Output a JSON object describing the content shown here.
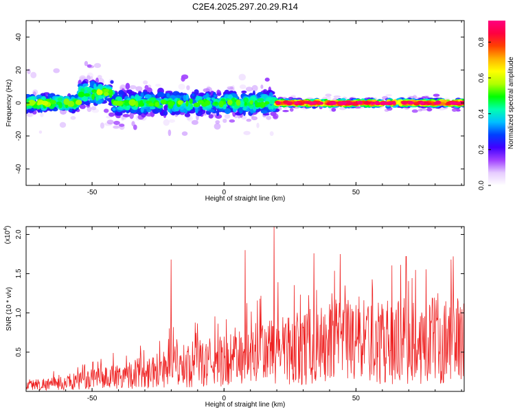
{
  "chart_data": [
    {
      "type": "heatmap",
      "title": "C2E4.2025.297.20.29.R14",
      "xlabel": "Height of straight line (km)",
      "ylabel": "Frequency (Hz)",
      "xlim": [
        -75,
        91
      ],
      "ylim": [
        -50,
        50
      ],
      "xticks": [
        -50,
        0,
        50
      ],
      "yticks": [
        -40,
        -20,
        0,
        20,
        40
      ],
      "colorbar": {
        "label": "Normalized spectral amplitude",
        "range": [
          0.0,
          0.92
        ],
        "ticks": [
          "0.0",
          "0.2",
          "0.4",
          "0.6",
          "0.8"
        ],
        "colors": [
          "#ffffff",
          "#e6ccff",
          "#a040ff",
          "#4000ff",
          "#0040ff",
          "#00c0ff",
          "#00ffb0",
          "#00ff00",
          "#b0ff00",
          "#ffff00",
          "#ffb000",
          "#ff4000",
          "#ff0040",
          "#ff0080"
        ]
      },
      "band": {
        "description_segments": [
          {
            "x_from": -75,
            "x_to": -55,
            "center_hz": 0,
            "spread_hz": 5,
            "peak_amp": 0.55
          },
          {
            "x_from": -55,
            "x_to": -42,
            "center_hz": 6,
            "spread_hz": 7,
            "peak_amp": 0.55
          },
          {
            "x_from": -42,
            "x_to": 20,
            "center_hz": 0,
            "spread_hz": 7,
            "peak_amp": 0.5
          },
          {
            "x_from": 20,
            "x_to": 91,
            "center_hz": 0,
            "spread_hz": 2,
            "peak_amp": 0.9
          }
        ]
      }
    },
    {
      "type": "line",
      "xlabel": "Height of straight line (km)",
      "ylabel": "SNR (10 * v/v)",
      "multiplier_label": "(x10",
      "multiplier_exp": "4",
      "xlim": [
        -75,
        91
      ],
      "ylim": [
        0,
        21000
      ],
      "xticks": [
        -50,
        0,
        50
      ],
      "yticks": [
        5000,
        10000,
        15000,
        20000
      ],
      "ytick_labels": [
        "0.5",
        "1.0",
        "1.5",
        "2.0"
      ],
      "series": [
        {
          "name": "SNR",
          "color": "#ee2020",
          "envelope_x": [
            -75,
            -60,
            -45,
            -30,
            -20,
            -10,
            0,
            10,
            20,
            30,
            40,
            50,
            60,
            70,
            80,
            91
          ],
          "envelope_mean": [
            1200,
            1500,
            2500,
            3500,
            4500,
            5000,
            5500,
            6500,
            7500,
            8000,
            8500,
            9000,
            9000,
            9200,
            9300,
            9500
          ],
          "peaks": [
            {
              "x": -20,
              "y": 16800
            },
            {
              "x": 8,
              "y": 18000
            },
            {
              "x": 19,
              "y": 21000
            },
            {
              "x": 34,
              "y": 17600
            },
            {
              "x": 44,
              "y": 17500
            },
            {
              "x": 69,
              "y": 17200
            },
            {
              "x": 86,
              "y": 16800
            }
          ]
        }
      ]
    }
  ]
}
